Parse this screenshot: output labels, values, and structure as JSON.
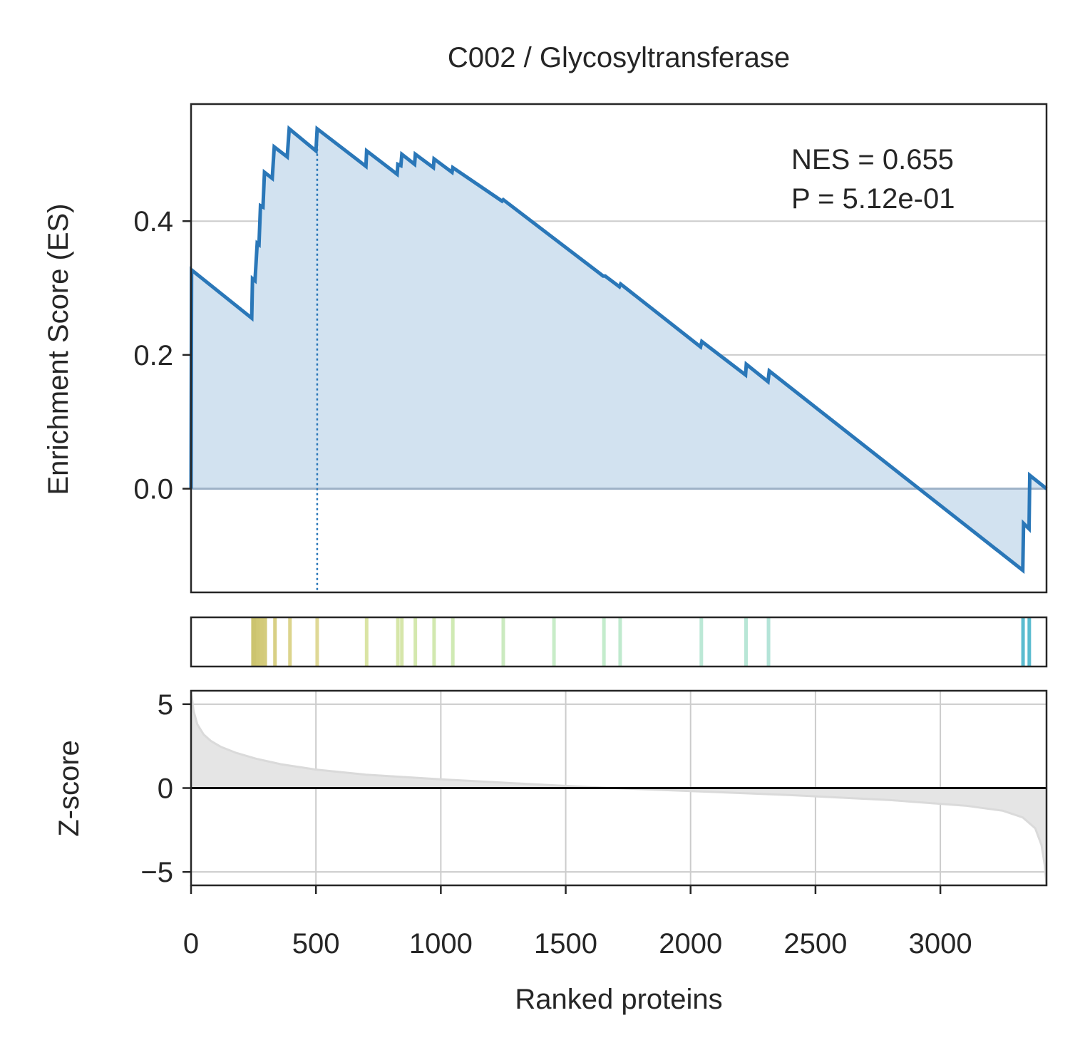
{
  "chart_data": {
    "type": "line",
    "title": "C002 / Glycosyltransferase",
    "xlabel": "Ranked proteins",
    "n_proteins": 3425,
    "xlim": [
      0,
      3425
    ],
    "x_ticks": [
      0,
      500,
      1000,
      1500,
      2000,
      2500,
      3000
    ],
    "es_panel": {
      "ylabel": "Enrichment Score (ES)",
      "ylim": [
        -0.155,
        0.575
      ],
      "y_ticks": [
        0.0,
        0.2,
        0.4
      ],
      "line_color": "#2a77b8",
      "fill_color": "#d2e2f0",
      "peak_rank": 505,
      "es_points": [
        [
          0,
          0.0
        ],
        [
          2,
          0.327
        ],
        [
          243,
          0.255
        ],
        [
          246,
          0.314
        ],
        [
          256,
          0.311
        ],
        [
          265,
          0.367
        ],
        [
          272,
          0.365
        ],
        [
          278,
          0.423
        ],
        [
          288,
          0.421
        ],
        [
          294,
          0.473
        ],
        [
          325,
          0.464
        ],
        [
          333,
          0.511
        ],
        [
          385,
          0.496
        ],
        [
          393,
          0.538
        ],
        [
          500,
          0.505
        ],
        [
          505,
          0.538
        ],
        [
          700,
          0.482
        ],
        [
          703,
          0.505
        ],
        [
          825,
          0.47
        ],
        [
          828,
          0.485
        ],
        [
          840,
          0.483
        ],
        [
          844,
          0.5
        ],
        [
          895,
          0.485
        ],
        [
          898,
          0.5
        ],
        [
          970,
          0.48
        ],
        [
          973,
          0.493
        ],
        [
          1045,
          0.473
        ],
        [
          1048,
          0.48
        ],
        [
          1245,
          0.43
        ],
        [
          1250,
          0.432
        ],
        [
          1450,
          0.375
        ],
        [
          1650,
          0.318
        ],
        [
          1658,
          0.318
        ],
        [
          1715,
          0.302
        ],
        [
          1720,
          0.306
        ],
        [
          2040,
          0.212
        ],
        [
          2045,
          0.22
        ],
        [
          2220,
          0.17
        ],
        [
          2223,
          0.186
        ],
        [
          2310,
          0.16
        ],
        [
          2315,
          0.176
        ],
        [
          3330,
          -0.122
        ],
        [
          3333,
          -0.052
        ],
        [
          3355,
          -0.06
        ],
        [
          3358,
          0.02
        ],
        [
          3425,
          0.0
        ]
      ],
      "annotation": [
        "NES = 0.655",
        "P = 5.12e-01"
      ]
    },
    "hits": {
      "ranks": [
        248,
        258,
        268,
        275,
        282,
        290,
        297,
        336,
        396,
        505,
        703,
        828,
        844,
        898,
        973,
        1048,
        1250,
        1453,
        1653,
        1718,
        2043,
        2222,
        2312,
        3331,
        3356
      ],
      "colors": [
        "#ccc46e",
        "#ccc46e",
        "#d0c874",
        "#d0c874",
        "#d3ca78",
        "#d3ca78",
        "#d4cc7c",
        "#d8d084",
        "#dcd48c",
        "#dfd896",
        "#dae4a4",
        "#d6e6a8",
        "#d6e6aa",
        "#d4e8ae",
        "#d2e8b0",
        "#d0eab4",
        "#cbeac0",
        "#c8ecc8",
        "#c4eccc",
        "#c0eace",
        "#bce8d6",
        "#b8e6d6",
        "#b4e4d8",
        "#5bbccf",
        "#5bbccf"
      ]
    },
    "zscore_panel": {
      "ylabel": "Z-score",
      "ylim": [
        -5.8,
        5.8
      ],
      "y_ticks": [
        5,
        0,
        -5
      ],
      "y_tick_labels": [
        "5",
        "0",
        "−5"
      ],
      "fill_color": "#e5e5e5",
      "curve_color": "#dadada",
      "points": [
        [
          0,
          5.8
        ],
        [
          10,
          4.6
        ],
        [
          25,
          3.8
        ],
        [
          50,
          3.2
        ],
        [
          80,
          2.8
        ],
        [
          120,
          2.45
        ],
        [
          180,
          2.1
        ],
        [
          260,
          1.75
        ],
        [
          360,
          1.42
        ],
        [
          500,
          1.1
        ],
        [
          700,
          0.8
        ],
        [
          1000,
          0.52
        ],
        [
          1300,
          0.28
        ],
        [
          1600,
          0.05
        ],
        [
          2000,
          -0.18
        ],
        [
          2400,
          -0.42
        ],
        [
          2800,
          -0.72
        ],
        [
          3100,
          -1.05
        ],
        [
          3250,
          -1.35
        ],
        [
          3330,
          -1.75
        ],
        [
          3380,
          -2.4
        ],
        [
          3405,
          -3.4
        ],
        [
          3418,
          -4.6
        ],
        [
          3425,
          -5.8
        ]
      ]
    }
  }
}
